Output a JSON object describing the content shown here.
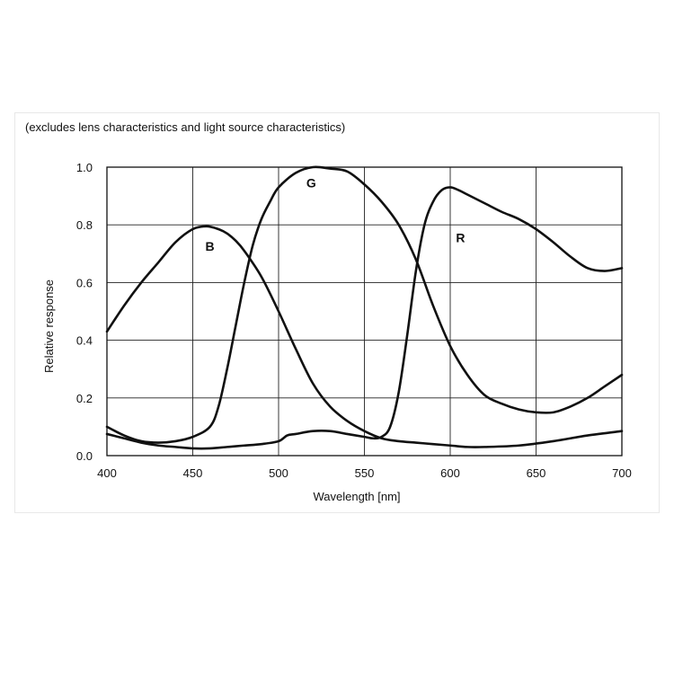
{
  "chart_data": {
    "type": "line",
    "subtitle": "(excludes lens characteristics and light source characteristics)",
    "xlabel": "Wavelength [nm]",
    "ylabel": "Relative response",
    "xlim": [
      400,
      700
    ],
    "ylim": [
      0.0,
      1.0
    ],
    "x_ticks": [
      400,
      450,
      500,
      550,
      600,
      650,
      700
    ],
    "y_ticks": [
      0.0,
      0.2,
      0.4,
      0.6,
      0.8,
      1.0
    ],
    "x_tick_labels": [
      "400",
      "450",
      "500",
      "550",
      "600",
      "650",
      "700"
    ],
    "y_tick_labels": [
      "0.0",
      "0.2",
      "0.4",
      "0.6",
      "0.8",
      "1.0"
    ],
    "grid": true,
    "series": [
      {
        "name": "B",
        "label_at": [
          460,
          0.71
        ],
        "x": [
          400,
          410,
          420,
          430,
          440,
          450,
          458,
          465,
          470,
          475,
          480,
          490,
          500,
          510,
          520,
          530,
          540,
          550,
          560,
          570,
          580,
          590,
          600,
          610,
          620,
          640,
          660,
          680,
          700
        ],
        "y": [
          0.43,
          0.52,
          0.6,
          0.67,
          0.74,
          0.785,
          0.795,
          0.785,
          0.77,
          0.745,
          0.71,
          0.62,
          0.5,
          0.37,
          0.25,
          0.17,
          0.12,
          0.085,
          0.06,
          0.05,
          0.045,
          0.04,
          0.035,
          0.03,
          0.03,
          0.035,
          0.05,
          0.07,
          0.085
        ]
      },
      {
        "name": "G",
        "label_at": [
          519,
          0.93
        ],
        "x": [
          400,
          410,
          420,
          430,
          440,
          450,
          460,
          465,
          470,
          475,
          480,
          485,
          490,
          495,
          500,
          510,
          520,
          530,
          540,
          550,
          560,
          570,
          580,
          590,
          600,
          610,
          620,
          630,
          640,
          650,
          660,
          670,
          680,
          690,
          700
        ],
        "y": [
          0.1,
          0.07,
          0.05,
          0.045,
          0.05,
          0.065,
          0.1,
          0.17,
          0.3,
          0.45,
          0.6,
          0.73,
          0.82,
          0.88,
          0.93,
          0.98,
          1.0,
          0.995,
          0.985,
          0.94,
          0.88,
          0.8,
          0.68,
          0.52,
          0.38,
          0.28,
          0.21,
          0.18,
          0.16,
          0.15,
          0.15,
          0.17,
          0.2,
          0.24,
          0.28
        ]
      },
      {
        "name": "R",
        "label_at": [
          606,
          0.74
        ],
        "x": [
          400,
          410,
          420,
          430,
          440,
          450,
          460,
          470,
          480,
          490,
          500,
          505,
          510,
          520,
          530,
          540,
          550,
          555,
          560,
          565,
          570,
          575,
          580,
          585,
          590,
          595,
          600,
          605,
          610,
          620,
          630,
          640,
          650,
          660,
          670,
          680,
          690,
          700
        ],
        "y": [
          0.075,
          0.06,
          0.045,
          0.035,
          0.03,
          0.025,
          0.025,
          0.03,
          0.035,
          0.04,
          0.05,
          0.07,
          0.075,
          0.085,
          0.085,
          0.075,
          0.065,
          0.06,
          0.065,
          0.1,
          0.22,
          0.42,
          0.64,
          0.8,
          0.88,
          0.92,
          0.93,
          0.92,
          0.905,
          0.875,
          0.845,
          0.82,
          0.785,
          0.74,
          0.69,
          0.65,
          0.64,
          0.65
        ]
      }
    ]
  }
}
